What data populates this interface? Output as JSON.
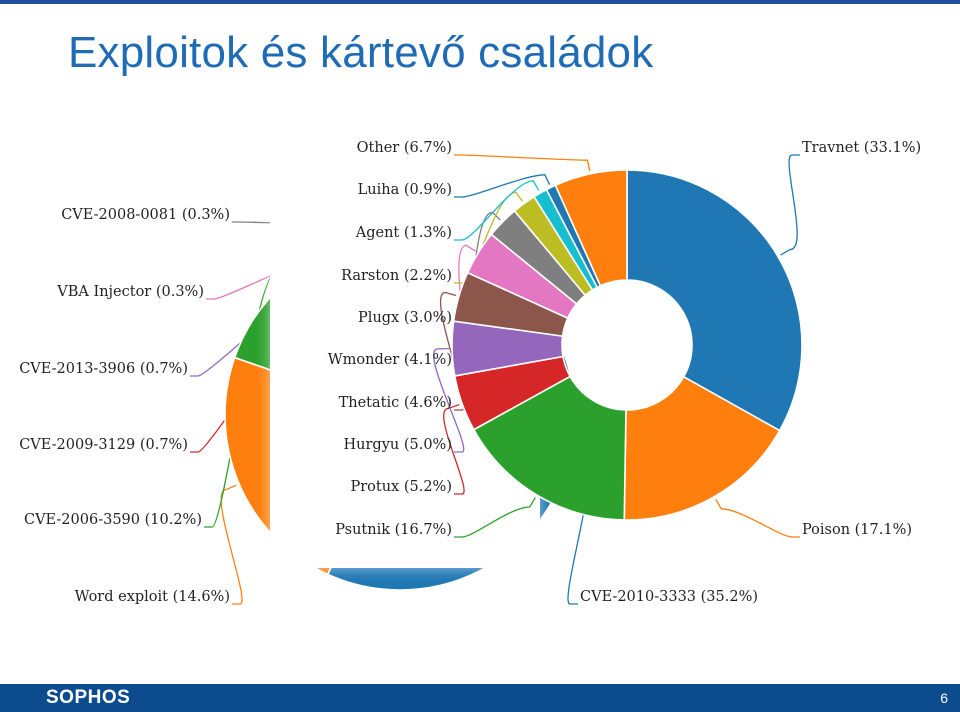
{
  "slide": {
    "title": "Exploitok és kártevő családok",
    "brand": "SOPHOS",
    "page_number": "6"
  },
  "chart_data": [
    {
      "type": "pie",
      "style": "donut",
      "slices": [
        {
          "label": "Travnet",
          "value": 33.1,
          "text": "Travnet (33.1%)",
          "color": "#1f77b4"
        },
        {
          "label": "Poison",
          "value": 17.1,
          "text": "Poison (17.1%)",
          "color": "#ff7f0e"
        },
        {
          "label": "Psutnik",
          "value": 16.7,
          "text": "Psutnik (16.7%)",
          "color": "#2ca02c"
        },
        {
          "label": "Protux",
          "value": 5.2,
          "text": "Protux (5.2%)",
          "color": "#d62728"
        },
        {
          "label": "Hurgyu",
          "value": 5.0,
          "text": "Hurgyu (5.0%)",
          "color": "#9467bd"
        },
        {
          "label": "Thetatic",
          "value": 4.6,
          "text": "Thetatic (4.6%)",
          "color": "#8c564b"
        },
        {
          "label": "Wmonder",
          "value": 4.1,
          "text": "Wmonder (4.1%)",
          "color": "#e377c2"
        },
        {
          "label": "Plugx",
          "value": 3.0,
          "text": "Plugx (3.0%)",
          "color": "#7f7f7f"
        },
        {
          "label": "Rarston",
          "value": 2.2,
          "text": "Rarston (2.2%)",
          "color": "#bcbd22"
        },
        {
          "label": "Agent",
          "value": 1.3,
          "text": "Agent (1.3%)",
          "color": "#17becf"
        },
        {
          "label": "Luiha",
          "value": 0.9,
          "text": "Luiha (0.9%)",
          "color": "#1f77b4"
        },
        {
          "label": "Other",
          "value": 6.7,
          "text": "Other (6.7%)",
          "color": "#ff7f0e"
        }
      ]
    },
    {
      "type": "pie",
      "style": "donut",
      "slices": [
        {
          "label": "CVE-2010-3333",
          "value": 35.2,
          "text": "CVE-2010-3333 (35.2%)",
          "color": "#1f77b4"
        },
        {
          "label": "Word exploit",
          "value": 14.6,
          "text": "Word exploit (14.6%)",
          "color": "#ff7f0e"
        },
        {
          "label": "CVE-2006-3590",
          "value": 10.2,
          "text": "CVE-2006-3590 (10.2%)",
          "color": "#2ca02c"
        },
        {
          "label": "CVE-2009-3129",
          "value": 0.7,
          "text": "CVE-2009-3129 (0.7%)",
          "color": "#d62728"
        },
        {
          "label": "CVE-2013-3906",
          "value": 0.7,
          "text": "CVE-2013-3906 (0.7%)",
          "color": "#9467bd"
        },
        {
          "label": "VBA Injector",
          "value": 0.3,
          "text": "VBA Injector (0.3%)",
          "color": "#e377c2"
        },
        {
          "label": "CVE-2008-0081",
          "value": 0.3,
          "text": "CVE-2008-0081 (0.3%)",
          "color": "#7f7f7f"
        }
      ]
    }
  ]
}
